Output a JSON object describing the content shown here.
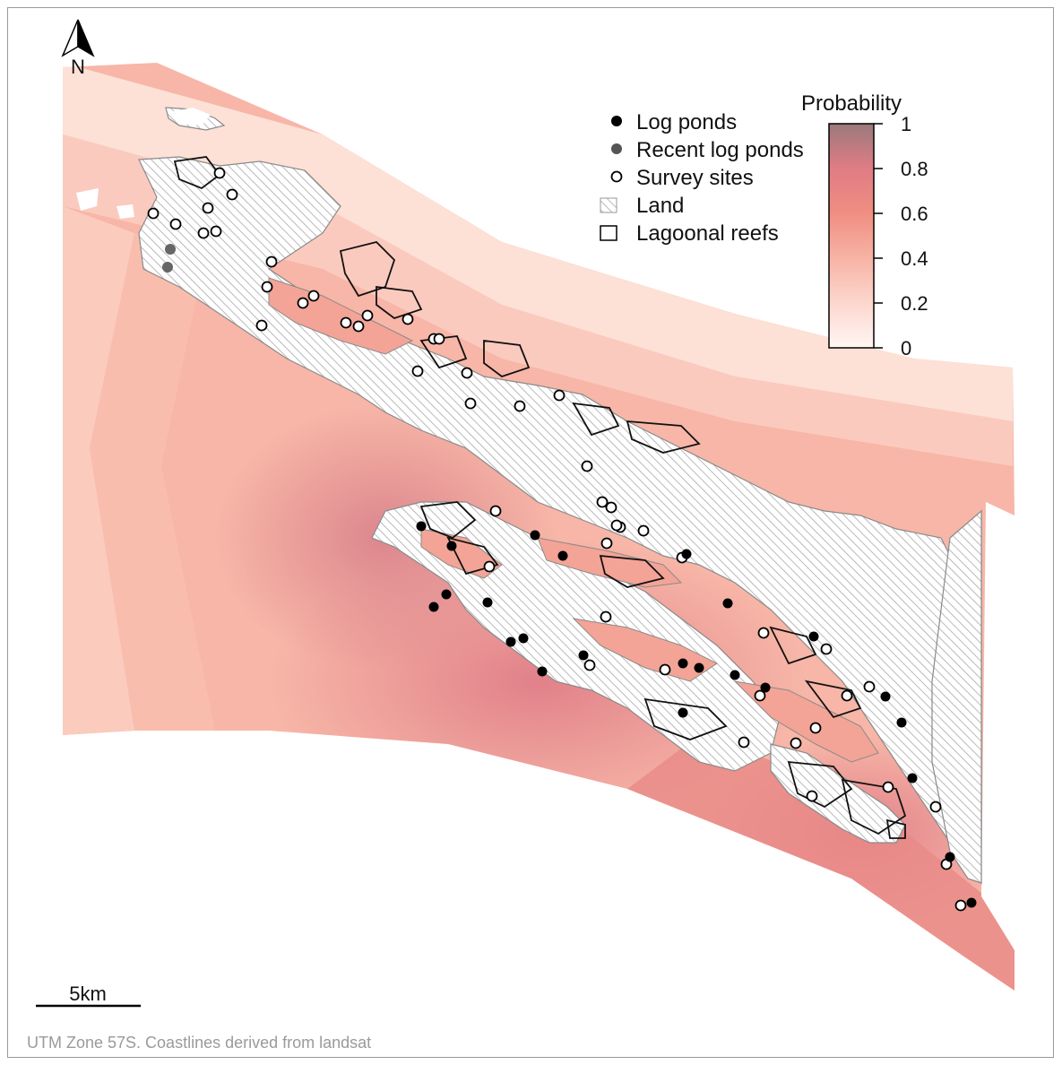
{
  "north_arrow": {
    "label": "N"
  },
  "legend": {
    "items": [
      {
        "label": "Log ponds",
        "symbol": "filled-circle",
        "color": "#000000"
      },
      {
        "label": "Recent log ponds",
        "symbol": "filled-circle",
        "color": "#555555"
      },
      {
        "label": "Survey sites",
        "symbol": "open-circle",
        "color": "#000000"
      },
      {
        "label": "Land",
        "symbol": "hatched-square",
        "color": "#bfbfbf"
      },
      {
        "label": "Lagoonal reefs",
        "symbol": "open-square",
        "color": "#000000"
      }
    ]
  },
  "colorbar": {
    "title": "Probability",
    "ticks": [
      "1",
      "0.8",
      "0.6",
      "0.4",
      "0.2",
      "0"
    ],
    "stops": [
      {
        "value": 0.0,
        "color": "#fff6f3"
      },
      {
        "value": 0.2,
        "color": "#fcd7ce"
      },
      {
        "value": 0.4,
        "color": "#f7b3a5"
      },
      {
        "value": 0.6,
        "color": "#f08e82"
      },
      {
        "value": 0.8,
        "color": "#e07c84"
      },
      {
        "value": 1.0,
        "color": "#9a7a7c"
      }
    ]
  },
  "scale_bar": {
    "label": "5km"
  },
  "credit": "UTM Zone 57S. Coastlines derived from landsat",
  "colors": {
    "land_hatch": "#9a9a9a",
    "coast": "#8a8a8a",
    "reef": "#111111",
    "log_pond": "#000000",
    "recent_log_pond": "#666666",
    "survey_fill": "#ffffff"
  }
}
